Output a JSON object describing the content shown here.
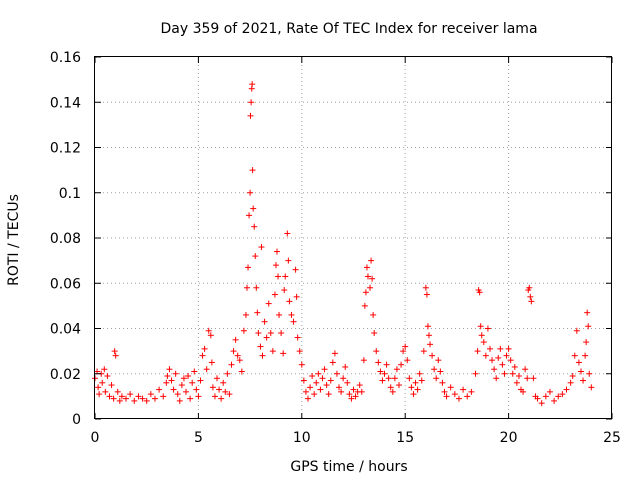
{
  "chart_data": {
    "type": "scatter",
    "title": "Day 359 of 2021, Rate Of TEC Index for receiver lama",
    "xlabel": "GPS time / hours",
    "ylabel": "ROTI / TECUs",
    "xlim": [
      0,
      25
    ],
    "ylim": [
      0,
      0.16
    ],
    "x_ticks": [
      0,
      5,
      10,
      15,
      20,
      25
    ],
    "x_tick_labels": [
      "0",
      "5",
      "10",
      "15",
      "20",
      "25"
    ],
    "y_ticks": [
      0,
      0.02,
      0.04,
      0.06,
      0.08,
      0.1,
      0.12,
      0.14,
      0.16
    ],
    "y_tick_labels": [
      "0",
      "0.02",
      "0.04",
      "0.06",
      "0.08",
      "0.1",
      "0.12",
      "0.14",
      "0.16"
    ],
    "grid": true,
    "marker": "+",
    "color": "#ff0000",
    "series": [
      {
        "points": [
          [
            0.0,
            0.018
          ],
          [
            0.1,
            0.021
          ],
          [
            0.15,
            0.014
          ],
          [
            0.2,
            0.011
          ],
          [
            0.3,
            0.02
          ],
          [
            0.35,
            0.016
          ],
          [
            0.45,
            0.022
          ],
          [
            0.5,
            0.012
          ],
          [
            0.6,
            0.019
          ],
          [
            0.7,
            0.01
          ],
          [
            0.8,
            0.015
          ],
          [
            0.9,
            0.009
          ],
          [
            0.95,
            0.03
          ],
          [
            1.0,
            0.028
          ],
          [
            1.1,
            0.012
          ],
          [
            1.2,
            0.008
          ],
          [
            1.3,
            0.01
          ],
          [
            1.5,
            0.009
          ],
          [
            1.7,
            0.011
          ],
          [
            1.9,
            0.008
          ],
          [
            2.1,
            0.01
          ],
          [
            2.3,
            0.009
          ],
          [
            2.5,
            0.008
          ],
          [
            2.7,
            0.011
          ],
          [
            2.9,
            0.009
          ],
          [
            3.1,
            0.013
          ],
          [
            3.3,
            0.01
          ],
          [
            3.45,
            0.016
          ],
          [
            3.5,
            0.019
          ],
          [
            3.6,
            0.022
          ],
          [
            3.7,
            0.017
          ],
          [
            3.8,
            0.013
          ],
          [
            3.9,
            0.02
          ],
          [
            4.0,
            0.011
          ],
          [
            4.1,
            0.008
          ],
          [
            4.2,
            0.015
          ],
          [
            4.3,
            0.018
          ],
          [
            4.4,
            0.012
          ],
          [
            4.5,
            0.019
          ],
          [
            4.6,
            0.009
          ],
          [
            4.7,
            0.016
          ],
          [
            4.8,
            0.021
          ],
          [
            4.9,
            0.013
          ],
          [
            5.0,
            0.01
          ],
          [
            5.1,
            0.017
          ],
          [
            5.2,
            0.028
          ],
          [
            5.3,
            0.031
          ],
          [
            5.4,
            0.022
          ],
          [
            5.5,
            0.039
          ],
          [
            5.6,
            0.037
          ],
          [
            5.65,
            0.025
          ],
          [
            5.7,
            0.014
          ],
          [
            5.8,
            0.01
          ],
          [
            5.9,
            0.018
          ],
          [
            6.0,
            0.013
          ],
          [
            6.1,
            0.009
          ],
          [
            6.2,
            0.016
          ],
          [
            6.3,
            0.012
          ],
          [
            6.4,
            0.02
          ],
          [
            6.5,
            0.011
          ],
          [
            6.6,
            0.024
          ],
          [
            6.7,
            0.03
          ],
          [
            6.8,
            0.035
          ],
          [
            6.9,
            0.028
          ],
          [
            7.0,
            0.026
          ],
          [
            7.1,
            0.021
          ],
          [
            7.2,
            0.039
          ],
          [
            7.3,
            0.046
          ],
          [
            7.35,
            0.058
          ],
          [
            7.4,
            0.067
          ],
          [
            7.45,
            0.09
          ],
          [
            7.5,
            0.1
          ],
          [
            7.52,
            0.134
          ],
          [
            7.55,
            0.14
          ],
          [
            7.58,
            0.146
          ],
          [
            7.6,
            0.148
          ],
          [
            7.62,
            0.11
          ],
          [
            7.65,
            0.093
          ],
          [
            7.7,
            0.085
          ],
          [
            7.75,
            0.072
          ],
          [
            7.8,
            0.058
          ],
          [
            7.85,
            0.047
          ],
          [
            7.9,
            0.038
          ],
          [
            8.0,
            0.032
          ],
          [
            8.05,
            0.076
          ],
          [
            8.1,
            0.028
          ],
          [
            8.2,
            0.043
          ],
          [
            8.3,
            0.036
          ],
          [
            8.4,
            0.051
          ],
          [
            8.5,
            0.038
          ],
          [
            8.6,
            0.03
          ],
          [
            8.7,
            0.055
          ],
          [
            8.75,
            0.068
          ],
          [
            8.8,
            0.074
          ],
          [
            8.85,
            0.063
          ],
          [
            8.9,
            0.046
          ],
          [
            9.0,
            0.038
          ],
          [
            9.1,
            0.029
          ],
          [
            9.15,
            0.057
          ],
          [
            9.2,
            0.063
          ],
          [
            9.3,
            0.082
          ],
          [
            9.35,
            0.07
          ],
          [
            9.4,
            0.052
          ],
          [
            9.5,
            0.046
          ],
          [
            9.6,
            0.043
          ],
          [
            9.7,
            0.066
          ],
          [
            9.75,
            0.054
          ],
          [
            9.8,
            0.036
          ],
          [
            9.9,
            0.03
          ],
          [
            10.0,
            0.024
          ],
          [
            10.1,
            0.017
          ],
          [
            10.2,
            0.012
          ],
          [
            10.3,
            0.009
          ],
          [
            10.4,
            0.014
          ],
          [
            10.5,
            0.019
          ],
          [
            10.6,
            0.011
          ],
          [
            10.7,
            0.016
          ],
          [
            10.8,
            0.02
          ],
          [
            10.9,
            0.013
          ],
          [
            11.0,
            0.018
          ],
          [
            11.1,
            0.022
          ],
          [
            11.2,
            0.015
          ],
          [
            11.3,
            0.011
          ],
          [
            11.4,
            0.017
          ],
          [
            11.5,
            0.025
          ],
          [
            11.6,
            0.029
          ],
          [
            11.7,
            0.02
          ],
          [
            11.8,
            0.014
          ],
          [
            11.9,
            0.012
          ],
          [
            12.0,
            0.018
          ],
          [
            12.1,
            0.023
          ],
          [
            12.2,
            0.016
          ],
          [
            12.3,
            0.011
          ],
          [
            12.4,
            0.009
          ],
          [
            12.5,
            0.013
          ],
          [
            12.6,
            0.01
          ],
          [
            12.7,
            0.012
          ],
          [
            12.8,
            0.015
          ],
          [
            12.9,
            0.012
          ],
          [
            13.0,
            0.026
          ],
          [
            13.05,
            0.05
          ],
          [
            13.1,
            0.056
          ],
          [
            13.15,
            0.067
          ],
          [
            13.2,
            0.063
          ],
          [
            13.3,
            0.058
          ],
          [
            13.35,
            0.07
          ],
          [
            13.4,
            0.062
          ],
          [
            13.45,
            0.046
          ],
          [
            13.5,
            0.038
          ],
          [
            13.6,
            0.03
          ],
          [
            13.7,
            0.025
          ],
          [
            13.8,
            0.021
          ],
          [
            13.9,
            0.017
          ],
          [
            14.0,
            0.02
          ],
          [
            14.1,
            0.024
          ],
          [
            14.2,
            0.018
          ],
          [
            14.3,
            0.014
          ],
          [
            14.4,
            0.012
          ],
          [
            14.5,
            0.018
          ],
          [
            14.6,
            0.022
          ],
          [
            14.7,
            0.015
          ],
          [
            14.8,
            0.024
          ],
          [
            14.9,
            0.03
          ],
          [
            15.0,
            0.032
          ],
          [
            15.1,
            0.026
          ],
          [
            15.2,
            0.018
          ],
          [
            15.3,
            0.014
          ],
          [
            15.4,
            0.011
          ],
          [
            15.5,
            0.016
          ],
          [
            15.6,
            0.013
          ],
          [
            15.7,
            0.02
          ],
          [
            15.8,
            0.017
          ],
          [
            15.9,
            0.03
          ],
          [
            16.0,
            0.058
          ],
          [
            16.05,
            0.055
          ],
          [
            16.1,
            0.041
          ],
          [
            16.15,
            0.037
          ],
          [
            16.2,
            0.033
          ],
          [
            16.3,
            0.028
          ],
          [
            16.4,
            0.022
          ],
          [
            16.5,
            0.018
          ],
          [
            16.6,
            0.026
          ],
          [
            16.7,
            0.021
          ],
          [
            16.8,
            0.016
          ],
          [
            16.9,
            0.012
          ],
          [
            17.0,
            0.01
          ],
          [
            17.2,
            0.014
          ],
          [
            17.4,
            0.011
          ],
          [
            17.6,
            0.009
          ],
          [
            17.8,
            0.013
          ],
          [
            18.0,
            0.01
          ],
          [
            18.2,
            0.012
          ],
          [
            18.4,
            0.02
          ],
          [
            18.5,
            0.03
          ],
          [
            18.55,
            0.057
          ],
          [
            18.6,
            0.056
          ],
          [
            18.65,
            0.041
          ],
          [
            18.7,
            0.037
          ],
          [
            18.8,
            0.034
          ],
          [
            18.9,
            0.028
          ],
          [
            19.0,
            0.04
          ],
          [
            19.1,
            0.031
          ],
          [
            19.2,
            0.026
          ],
          [
            19.3,
            0.022
          ],
          [
            19.4,
            0.018
          ],
          [
            19.5,
            0.027
          ],
          [
            19.6,
            0.031
          ],
          [
            19.7,
            0.024
          ],
          [
            19.8,
            0.02
          ],
          [
            19.9,
            0.028
          ],
          [
            20.0,
            0.031
          ],
          [
            20.1,
            0.026
          ],
          [
            20.2,
            0.02
          ],
          [
            20.3,
            0.023
          ],
          [
            20.4,
            0.016
          ],
          [
            20.5,
            0.019
          ],
          [
            20.6,
            0.013
          ],
          [
            20.7,
            0.012
          ],
          [
            20.8,
            0.022
          ],
          [
            20.9,
            0.018
          ],
          [
            20.95,
            0.057
          ],
          [
            21.0,
            0.058
          ],
          [
            21.05,
            0.054
          ],
          [
            21.1,
            0.052
          ],
          [
            21.2,
            0.018
          ],
          [
            21.3,
            0.01
          ],
          [
            21.4,
            0.009
          ],
          [
            21.6,
            0.007
          ],
          [
            21.8,
            0.01
          ],
          [
            22.0,
            0.012
          ],
          [
            22.2,
            0.008
          ],
          [
            22.4,
            0.01
          ],
          [
            22.6,
            0.011
          ],
          [
            22.8,
            0.013
          ],
          [
            23.0,
            0.016
          ],
          [
            23.1,
            0.019
          ],
          [
            23.2,
            0.028
          ],
          [
            23.3,
            0.039
          ],
          [
            23.4,
            0.025
          ],
          [
            23.5,
            0.021
          ],
          [
            23.6,
            0.017
          ],
          [
            23.7,
            0.028
          ],
          [
            23.75,
            0.034
          ],
          [
            23.8,
            0.047
          ],
          [
            23.85,
            0.041
          ],
          [
            23.9,
            0.02
          ],
          [
            24.0,
            0.014
          ]
        ]
      }
    ]
  }
}
